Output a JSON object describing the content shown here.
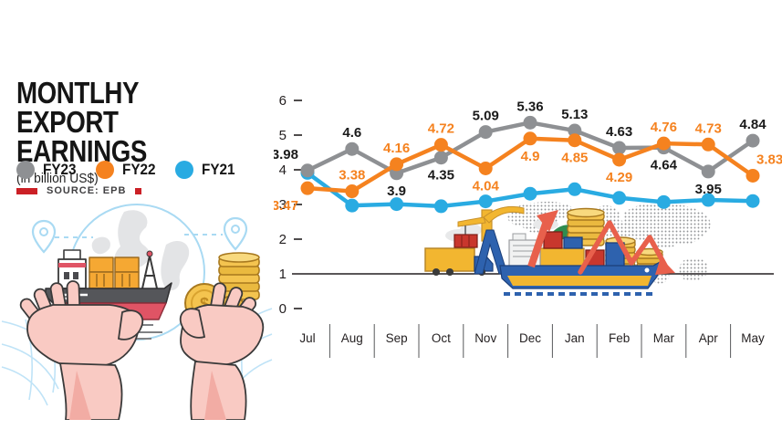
{
  "header": {
    "title_line1": "MONTLHY EXPORT",
    "title_line2": "EARNINGS",
    "subtitle": "(in billion US$)",
    "source_label": "SOURCE: EPB",
    "accent_red": "#cb2026"
  },
  "legend": {
    "items": [
      {
        "label": "FY23",
        "color": "#8e9093"
      },
      {
        "label": "FY22",
        "color": "#f5821f"
      },
      {
        "label": "FY21",
        "color": "#29abe2"
      }
    ]
  },
  "chart_data": {
    "type": "line",
    "title": "MONTLHY EXPORT EARNINGS",
    "xlabel": "",
    "ylabel": "in billion US$",
    "ylim": [
      0,
      6
    ],
    "y_ticks": [
      6,
      5,
      4,
      3,
      2,
      1,
      0
    ],
    "baseline_value": 1,
    "grid": "off",
    "legend_position": "left",
    "categories": [
      "Jul",
      "Aug",
      "Sep",
      "Oct",
      "Nov",
      "Dec",
      "Jan",
      "Feb",
      "Mar",
      "Apr",
      "May"
    ],
    "series": [
      {
        "name": "FY23",
        "color": "#8e9093",
        "label_color": "#1a1a1a",
        "z": 1,
        "values": [
          3.98,
          4.6,
          3.9,
          4.35,
          5.09,
          5.36,
          5.13,
          4.63,
          4.64,
          3.95,
          4.84
        ],
        "labels": [
          "3.98",
          "4.6",
          "3.9",
          "4.35",
          "5.09",
          "5.36",
          "5.13",
          "4.63",
          "4.64",
          "3.95",
          "4.84"
        ],
        "label_pos": [
          "above-left",
          "above",
          "below",
          "below",
          "above",
          "above",
          "above",
          "above",
          "below",
          "below",
          "above"
        ]
      },
      {
        "name": "FY22",
        "color": "#f5821f",
        "label_color": "#f5821f",
        "z": 2,
        "values": [
          3.47,
          3.38,
          4.16,
          4.72,
          4.04,
          4.9,
          4.85,
          4.29,
          4.76,
          4.73,
          3.83
        ],
        "labels": [
          "3.47",
          "3.38",
          "4.16",
          "4.72",
          "4.04",
          "4.9",
          "4.85",
          "4.29",
          "4.76",
          "4.73",
          "3.83"
        ],
        "label_pos": [
          "below-left",
          "above",
          "above",
          "above",
          "below",
          "below",
          "below",
          "below",
          "above",
          "above",
          "above-right"
        ]
      },
      {
        "name": "FY21",
        "color": "#29abe2",
        "label_color": null,
        "z": 0,
        "values": [
          3.91,
          2.97,
          3.01,
          2.95,
          3.09,
          3.31,
          3.44,
          3.19,
          3.07,
          3.13,
          3.1
        ],
        "labels": null,
        "label_pos": null
      }
    ]
  }
}
